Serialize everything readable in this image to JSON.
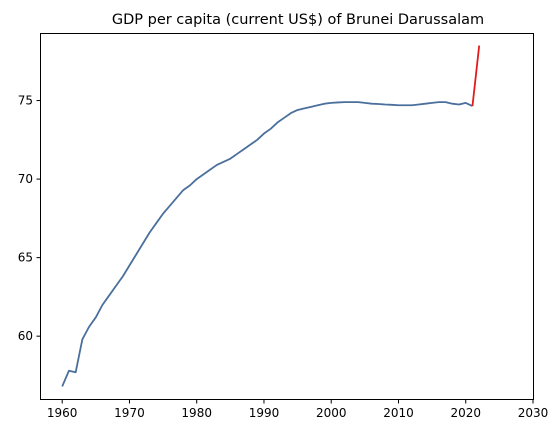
{
  "chart_data": {
    "type": "line",
    "title": "GDP per capita (current US$) of Brunei Darussalam",
    "xlabel": "",
    "ylabel": "",
    "xlim": [
      1956.7,
      2030
    ],
    "ylim": [
      56.0,
      79.3
    ],
    "x_ticks": [
      1960,
      1970,
      1980,
      1990,
      2000,
      2010,
      2020,
      2030
    ],
    "y_ticks": [
      60,
      65,
      70,
      75
    ],
    "grid": false,
    "series": [
      {
        "color": "#4a6f9c",
        "x": [
          1960,
          1961,
          1962,
          1963,
          1964,
          1965,
          1966,
          1967,
          1968,
          1969,
          1970,
          1971,
          1972,
          1973,
          1974,
          1975,
          1976,
          1977,
          1978,
          1979,
          1980,
          1981,
          1982,
          1983,
          1984,
          1985,
          1986,
          1987,
          1988,
          1989,
          1990,
          1991,
          1992,
          1993,
          1994,
          1995,
          1996,
          1997,
          1998,
          1999,
          2000,
          2001,
          2002,
          2003,
          2004,
          2005,
          2006,
          2007,
          2008,
          2009,
          2010,
          2011,
          2012,
          2013,
          2014,
          2015,
          2016,
          2017,
          2018,
          2019,
          2020,
          2021
        ],
        "y": [
          56.8,
          57.8,
          57.7,
          59.8,
          60.6,
          61.2,
          62.0,
          62.6,
          63.2,
          63.8,
          64.5,
          65.2,
          65.9,
          66.6,
          67.2,
          67.8,
          68.3,
          68.8,
          69.3,
          69.6,
          70.0,
          70.3,
          70.6,
          70.9,
          71.1,
          71.3,
          71.6,
          71.9,
          72.2,
          72.5,
          72.9,
          73.2,
          73.6,
          73.9,
          74.2,
          74.4,
          74.5,
          74.6,
          74.7,
          74.8,
          74.85,
          74.88,
          74.9,
          74.9,
          74.9,
          74.85,
          74.8,
          74.78,
          74.75,
          74.73,
          74.7,
          74.7,
          74.7,
          74.75,
          74.8,
          74.85,
          74.9,
          74.9,
          74.8,
          74.75,
          74.85,
          74.65
        ],
        "years_note": ""
      },
      {
        "color": "#e41a1c",
        "x": [
          2021,
          2022
        ],
        "y": [
          74.65,
          78.5
        ]
      }
    ]
  }
}
